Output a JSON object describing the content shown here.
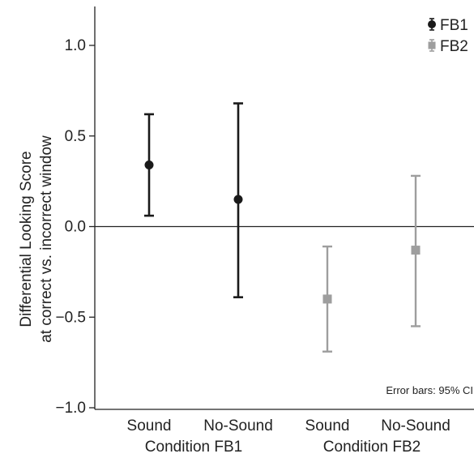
{
  "chart_data": {
    "type": "scatter",
    "ylabel_line1": "Differential Looking Score",
    "ylabel_line2": "at correct vs. incorrect window",
    "ylim": [
      -1.0,
      1.2
    ],
    "yticks": [
      "1.0",
      "0.5",
      "0.0",
      "−0.5",
      "−1.0"
    ],
    "ytick_values": [
      1.0,
      0.5,
      0.0,
      -0.5,
      -1.0
    ],
    "categories": [
      "Sound",
      "No-Sound",
      "Sound",
      "No-Sound"
    ],
    "groups": [
      "Condition FB1",
      "Condition FB2"
    ],
    "reference_line_y": 0,
    "series": [
      {
        "name": "FB1",
        "marker": "circle",
        "color": "#1a1a1a",
        "points": [
          {
            "category_index": 0,
            "y": 0.34,
            "lower": 0.06,
            "upper": 0.62
          },
          {
            "category_index": 1,
            "y": 0.15,
            "lower": -0.39,
            "upper": 0.68
          }
        ]
      },
      {
        "name": "FB2",
        "marker": "square",
        "color": "#9e9e9e",
        "points": [
          {
            "category_index": 2,
            "y": -0.4,
            "lower": -0.69,
            "upper": -0.11
          },
          {
            "category_index": 3,
            "y": -0.13,
            "lower": -0.55,
            "upper": 0.28
          }
        ]
      }
    ],
    "legend_position": "top-right",
    "note": "Error bars: 95% CI"
  }
}
